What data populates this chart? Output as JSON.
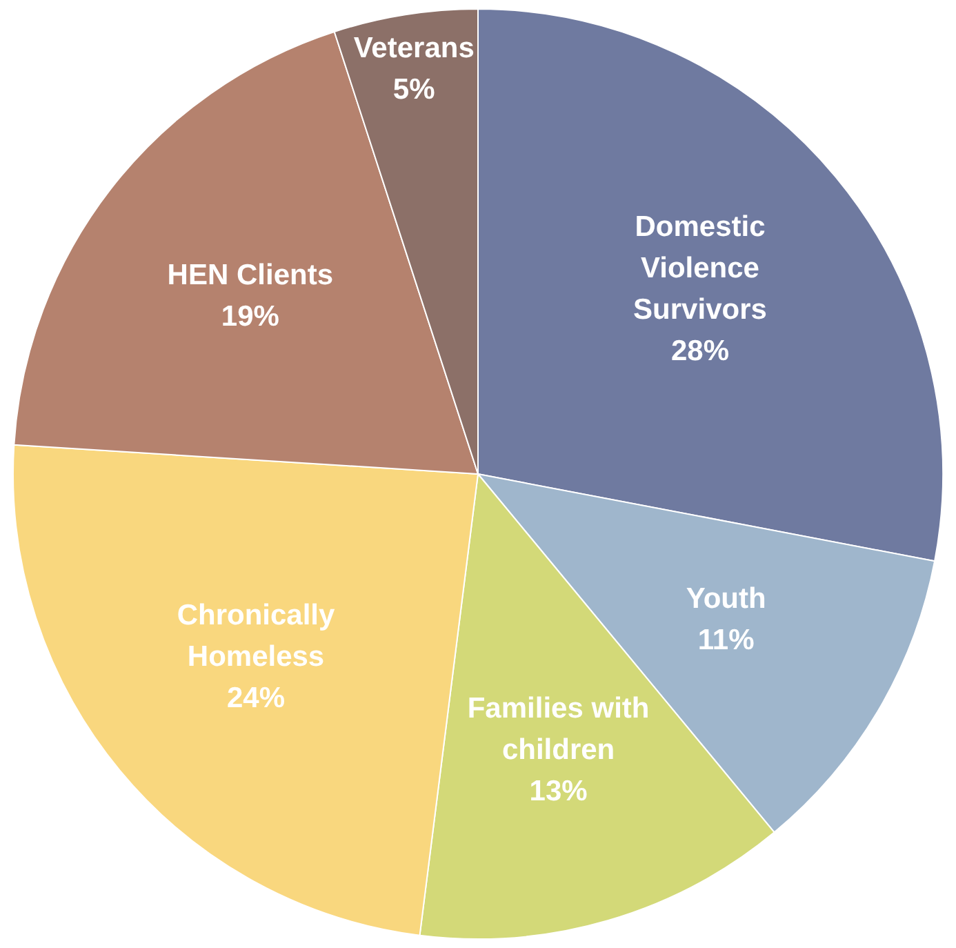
{
  "chart_data": {
    "type": "pie",
    "categories": [
      "Domestic Violence Survivors",
      "Youth",
      "Families with children",
      "Chronically Homeless",
      "HEN Clients",
      "Veterans"
    ],
    "values": [
      28,
      11,
      13,
      24,
      19,
      5
    ],
    "value_labels": [
      "28%",
      "11%",
      "13%",
      "24%",
      "19%",
      "5%"
    ],
    "colors": [
      "#6f7aa0",
      "#9fb6cc",
      "#d3d978",
      "#f9d77e",
      "#b5826e",
      "#8c7068"
    ],
    "legend": false
  }
}
